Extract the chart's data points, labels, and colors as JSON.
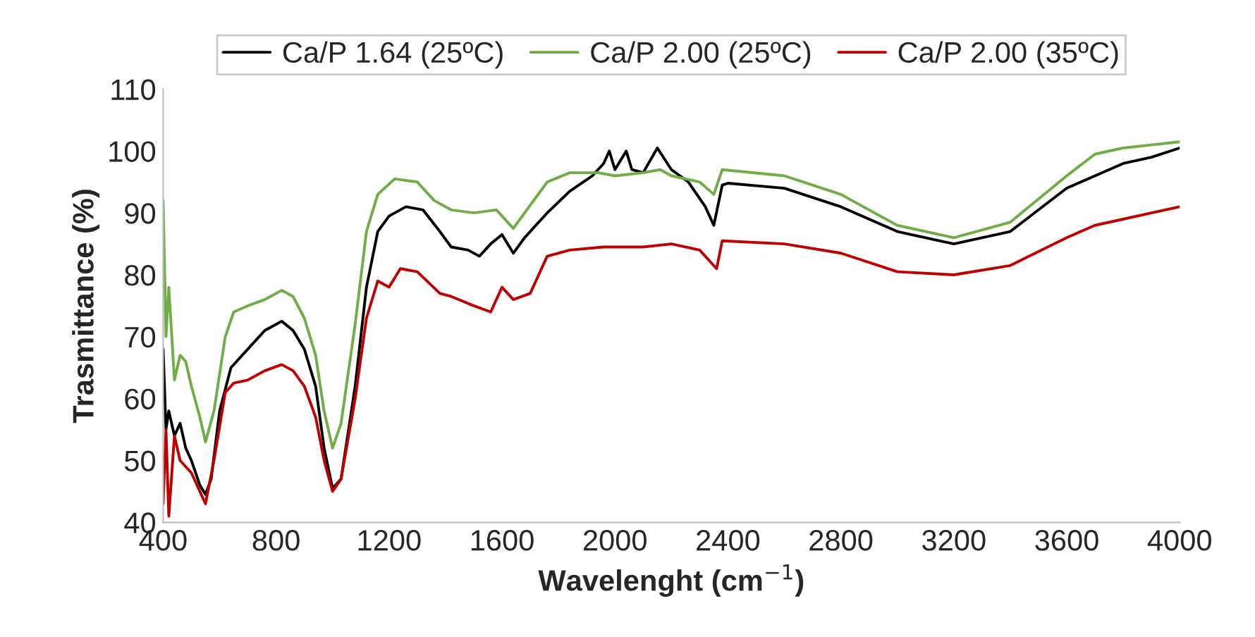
{
  "chart_data": {
    "type": "line",
    "xlabel": "Wavelenght (cm$^{−1}$)",
    "ylabel": "Trasmittance (%)",
    "xlim": [
      400,
      4000
    ],
    "xticks": [
      400,
      800,
      1200,
      1600,
      2000,
      2400,
      2800,
      3200,
      3600,
      4000
    ],
    "ylim": [
      40,
      110
    ],
    "yticks": [
      40,
      50,
      60,
      70,
      80,
      90,
      100,
      110
    ],
    "grid": false,
    "legend": "top",
    "series": [
      {
        "name": "Ca/P 1.64 (25ºC)",
        "color": "#000000",
        "x": [
          400,
          410,
          420,
          440,
          460,
          480,
          500,
          530,
          550,
          570,
          600,
          640,
          660,
          700,
          760,
          820,
          860,
          900,
          940,
          970,
          1000,
          1030,
          1080,
          1120,
          1160,
          1200,
          1260,
          1320,
          1380,
          1420,
          1480,
          1520,
          1560,
          1600,
          1640,
          1680,
          1760,
          1840,
          1920,
          1960,
          1980,
          2000,
          2040,
          2060,
          2100,
          2150,
          2200,
          2260,
          2320,
          2350,
          2380,
          2400,
          2600,
          2800,
          3000,
          3200,
          3400,
          3600,
          3700,
          3800,
          3900,
          4000
        ],
        "values": [
          68,
          55,
          58,
          54,
          56,
          52,
          50,
          46,
          44.5,
          47,
          58,
          65,
          66,
          68,
          71,
          72.5,
          71,
          68,
          62,
          52,
          45.5,
          47,
          62,
          78,
          87,
          89.5,
          91,
          90.5,
          87,
          84.5,
          84,
          83,
          85,
          86.5,
          83.5,
          86,
          90,
          93.5,
          96,
          98,
          100,
          97,
          100,
          97,
          96.5,
          100.5,
          97,
          95,
          91,
          88,
          94.5,
          94.8,
          94,
          91,
          87,
          85,
          87,
          94,
          96,
          98,
          99,
          100.5
        ]
      },
      {
        "name": "Ca/P 2.00 (25ºC)",
        "color": "#70ad47",
        "x": [
          400,
          410,
          420,
          440,
          460,
          480,
          500,
          530,
          550,
          580,
          620,
          650,
          700,
          760,
          820,
          860,
          900,
          940,
          970,
          1000,
          1030,
          1080,
          1120,
          1160,
          1220,
          1300,
          1360,
          1420,
          1500,
          1580,
          1640,
          1680,
          1760,
          1840,
          1940,
          2000,
          2100,
          2160,
          2200,
          2300,
          2350,
          2380,
          2600,
          2800,
          3000,
          3200,
          3400,
          3600,
          3700,
          3800,
          3900,
          4000
        ],
        "values": [
          92,
          70,
          78,
          63,
          67,
          66,
          62,
          57,
          53,
          58,
          70,
          74,
          75,
          76,
          77.5,
          76.5,
          73,
          67,
          58,
          52,
          56,
          72,
          87,
          93,
          95.5,
          95,
          92,
          90.5,
          90,
          90.5,
          87.5,
          90,
          95,
          96.5,
          96.5,
          96,
          96.5,
          97,
          96,
          95,
          93,
          97,
          96,
          93,
          88,
          86,
          88.5,
          96,
          99.5,
          100.5,
          101,
          101.5
        ]
      },
      {
        "name": "Ca/P 2.00 (35ºC)",
        "color": "#c00000",
        "x": [
          400,
          410,
          420,
          440,
          460,
          500,
          530,
          550,
          580,
          620,
          650,
          700,
          760,
          820,
          860,
          900,
          940,
          970,
          1000,
          1030,
          1080,
          1120,
          1160,
          1200,
          1240,
          1300,
          1380,
          1420,
          1500,
          1560,
          1600,
          1640,
          1700,
          1760,
          1840,
          1960,
          2100,
          2200,
          2300,
          2340,
          2360,
          2380,
          2600,
          2800,
          3000,
          3200,
          3400,
          3600,
          3700,
          3800,
          3900,
          4000
        ],
        "values": [
          43,
          55,
          41,
          54,
          50,
          48,
          45,
          43,
          50,
          61,
          62.5,
          63,
          64.5,
          65.5,
          64.5,
          62,
          57,
          50,
          45,
          47,
          60,
          73,
          79,
          78,
          81,
          80.5,
          77,
          76.5,
          75,
          74,
          78,
          76,
          77,
          83,
          84,
          84.5,
          84.5,
          85,
          84,
          82,
          81,
          85.5,
          85,
          83.5,
          80.5,
          80,
          81.5,
          86,
          88,
          89,
          90,
          91
        ]
      }
    ]
  }
}
